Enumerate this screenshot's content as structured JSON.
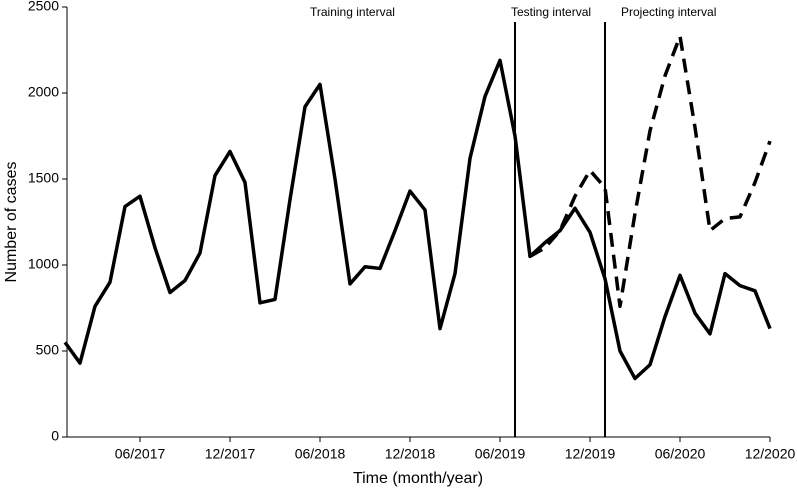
{
  "chart_data": {
    "type": "line",
    "xlabel": "Time (month/year)",
    "ylabel": "Number of cases",
    "categories": [
      null,
      null,
      null,
      null,
      null,
      "06/2017",
      null,
      null,
      null,
      null,
      null,
      "12/2017",
      null,
      null,
      null,
      null,
      null,
      "06/2018",
      null,
      null,
      null,
      null,
      null,
      "12/2018",
      null,
      null,
      null,
      null,
      null,
      "06/2019",
      null,
      null,
      null,
      null,
      null,
      "12/2019",
      null,
      null,
      null,
      null,
      null,
      "06/2020",
      null,
      null,
      null,
      null,
      null,
      "12/2020"
    ],
    "series": [
      {
        "color": "#000000",
        "line_style": "solid",
        "values": [
          550,
          430,
          760,
          900,
          1340,
          1400,
          1100,
          840,
          910,
          1070,
          1520,
          1660,
          1480,
          780,
          800,
          1380,
          1920,
          2050,
          1500,
          890,
          990,
          980,
          1200,
          1430,
          1320,
          630,
          950,
          1620,
          1980,
          2190,
          1750,
          1050,
          1130,
          1200,
          1330,
          1190,
          920,
          500,
          340,
          420,
          700,
          940,
          720,
          600,
          950,
          880,
          850,
          630
        ]
      },
      {
        "color": "#000000",
        "line_style": "dashed",
        "values": [
          null,
          null,
          null,
          null,
          null,
          null,
          null,
          null,
          null,
          null,
          null,
          null,
          null,
          null,
          null,
          null,
          null,
          null,
          null,
          null,
          null,
          null,
          null,
          null,
          null,
          null,
          null,
          null,
          null,
          null,
          null,
          1050,
          1100,
          1200,
          1400,
          1550,
          1450,
          760,
          1300,
          1780,
          2100,
          2330,
          1800,
          1200,
          1270,
          1280,
          1480,
          1720
        ]
      }
    ],
    "annotations": [
      "Training interval",
      "Testing interval",
      "Projecting interval"
    ],
    "dividers": [
      30,
      36
    ],
    "ylim": [
      0,
      2500
    ],
    "yticks": [
      0,
      500,
      1000,
      1500,
      2000,
      2500
    ]
  }
}
